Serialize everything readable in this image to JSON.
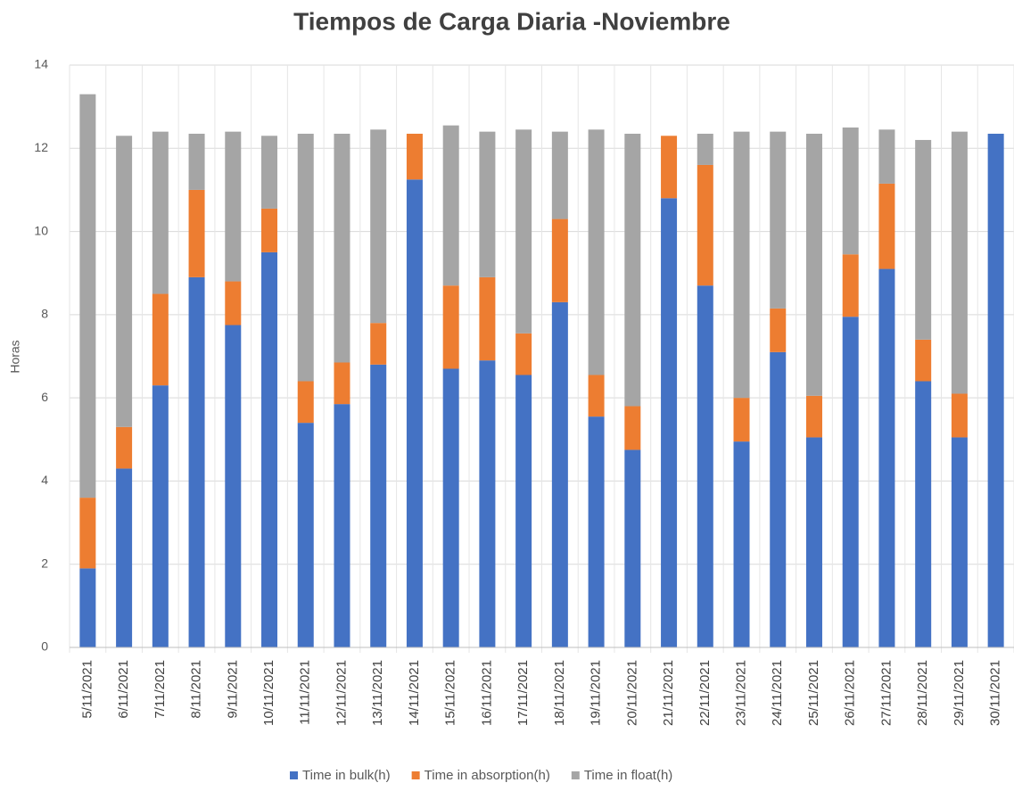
{
  "chart_data": {
    "type": "stacked_bar",
    "title": "Tiempos de Carga Diaria -Noviembre",
    "y_label": "Horas",
    "categories": [
      "5/11/2021",
      "6/11/2021",
      "7/11/2021",
      "8/11/2021",
      "9/11/2021",
      "10/11/2021",
      "11/11/2021",
      "12/11/2021",
      "13/11/2021",
      "14/11/2021",
      "15/11/2021",
      "16/11/2021",
      "17/11/2021",
      "18/11/2021",
      "19/11/2021",
      "20/11/2021",
      "21/11/2021",
      "22/11/2021",
      "23/11/2021",
      "24/11/2021",
      "25/11/2021",
      "26/11/2021",
      "27/11/2021",
      "28/11/2021",
      "29/11/2021",
      "30/11/2021"
    ],
    "series": [
      {
        "name": "Time in bulk(h)",
        "color": "#4472c4",
        "values": [
          1.9,
          4.3,
          6.3,
          8.9,
          7.75,
          9.5,
          5.4,
          5.85,
          6.8,
          11.25,
          6.7,
          6.9,
          6.55,
          8.3,
          5.55,
          4.75,
          10.8,
          8.7,
          4.95,
          7.1,
          5.05,
          7.95,
          9.1,
          6.4,
          5.05,
          12.35
        ]
      },
      {
        "name": "Time in absorption(h)",
        "color": "#ed7d31",
        "values": [
          1.7,
          1.0,
          2.2,
          2.1,
          1.05,
          1.05,
          1.0,
          1.0,
          1.0,
          1.1,
          2.0,
          2.0,
          1.0,
          2.0,
          1.0,
          1.05,
          1.5,
          2.9,
          1.05,
          1.05,
          1.0,
          1.5,
          2.05,
          1.0,
          1.05,
          0
        ]
      },
      {
        "name": "Time in float(h)",
        "color": "#a5a5a5",
        "values": [
          9.7,
          7.0,
          3.9,
          1.35,
          3.6,
          1.75,
          5.95,
          5.5,
          4.65,
          0,
          3.85,
          3.5,
          4.9,
          2.1,
          5.9,
          6.55,
          0,
          0.75,
          6.4,
          4.25,
          6.3,
          3.05,
          1.3,
          4.8,
          6.3,
          0
        ]
      }
    ],
    "ylim": [
      0,
      14
    ],
    "yticks": [
      0,
      2,
      4,
      6,
      8,
      10,
      12,
      14
    ],
    "grid": true,
    "legend": "bottom"
  }
}
